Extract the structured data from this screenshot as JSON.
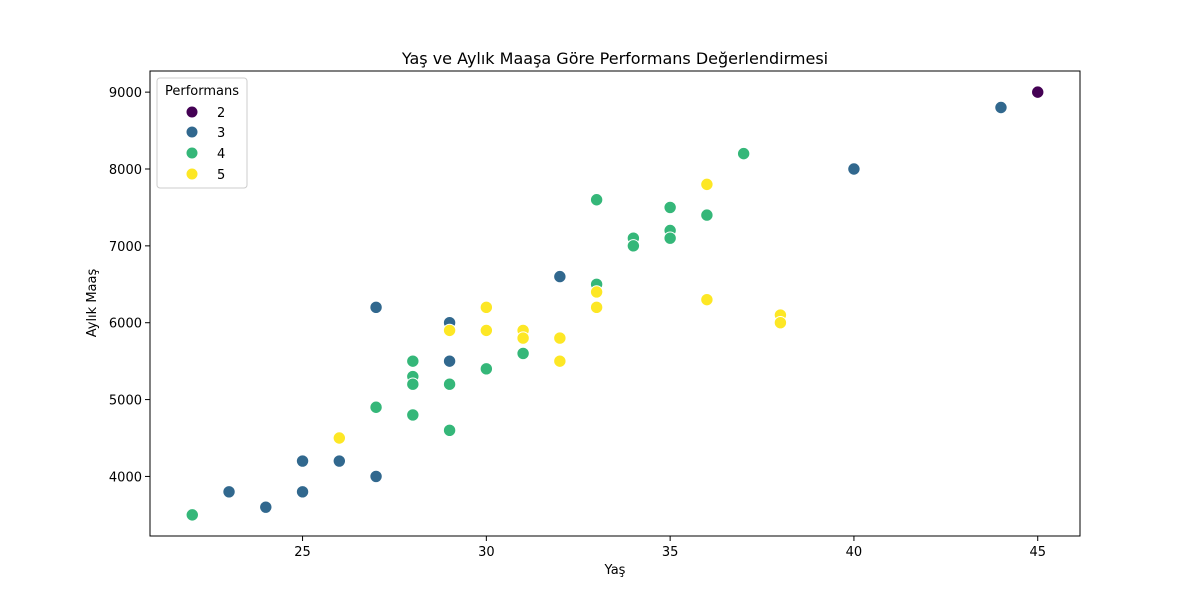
{
  "chart_data": {
    "type": "scatter",
    "title": "Yaş ve Aylık Maaşa Göre Performans Değerlendirmesi",
    "xlabel": "Yaş",
    "ylabel": "Aylık Maaş",
    "xlim": [
      20.85,
      46.15
    ],
    "ylim": [
      3225,
      9275
    ],
    "xticks": [
      25,
      30,
      35,
      40,
      45
    ],
    "yticks": [
      4000,
      5000,
      6000,
      7000,
      8000,
      9000
    ],
    "grid": false,
    "legend": {
      "title": "Performans",
      "position": "top-left",
      "entries": [
        {
          "label": "2",
          "color": "#440154"
        },
        {
          "label": "3",
          "color": "#31688e"
        },
        {
          "label": "4",
          "color": "#35b779"
        },
        {
          "label": "5",
          "color": "#fde725"
        }
      ]
    },
    "series": [
      {
        "name": "2",
        "color": "#440154",
        "points": [
          [
            45,
            9000
          ]
        ]
      },
      {
        "name": "3",
        "color": "#31688e",
        "points": [
          [
            44,
            8800
          ],
          [
            40,
            8000
          ],
          [
            32,
            6600
          ],
          [
            27,
            6200
          ],
          [
            29,
            6000
          ],
          [
            29,
            5500
          ],
          [
            25,
            4200
          ],
          [
            26,
            4200
          ],
          [
            27,
            4000
          ],
          [
            23,
            3800
          ],
          [
            25,
            3800
          ],
          [
            24,
            3600
          ]
        ]
      },
      {
        "name": "4",
        "color": "#35b779",
        "points": [
          [
            37,
            8200
          ],
          [
            33,
            7600
          ],
          [
            35,
            7500
          ],
          [
            36,
            7400
          ],
          [
            35,
            7200
          ],
          [
            35,
            7100
          ],
          [
            34,
            7100
          ],
          [
            34,
            7000
          ],
          [
            33,
            6500
          ],
          [
            31,
            5600
          ],
          [
            28,
            5500
          ],
          [
            30,
            5400
          ],
          [
            28,
            5300
          ],
          [
            28,
            5200
          ],
          [
            29,
            5200
          ],
          [
            27,
            4900
          ],
          [
            28,
            4800
          ],
          [
            29,
            4600
          ],
          [
            22,
            3500
          ]
        ]
      },
      {
        "name": "5",
        "color": "#fde725",
        "points": [
          [
            36,
            7800
          ],
          [
            33,
            6400
          ],
          [
            36,
            6300
          ],
          [
            30,
            6200
          ],
          [
            33,
            6200
          ],
          [
            38,
            6100
          ],
          [
            38,
            6000
          ],
          [
            29,
            5900
          ],
          [
            30,
            5900
          ],
          [
            31,
            5900
          ],
          [
            31,
            5800
          ],
          [
            32,
            5800
          ],
          [
            32,
            5500
          ],
          [
            26,
            4500
          ]
        ]
      }
    ]
  }
}
